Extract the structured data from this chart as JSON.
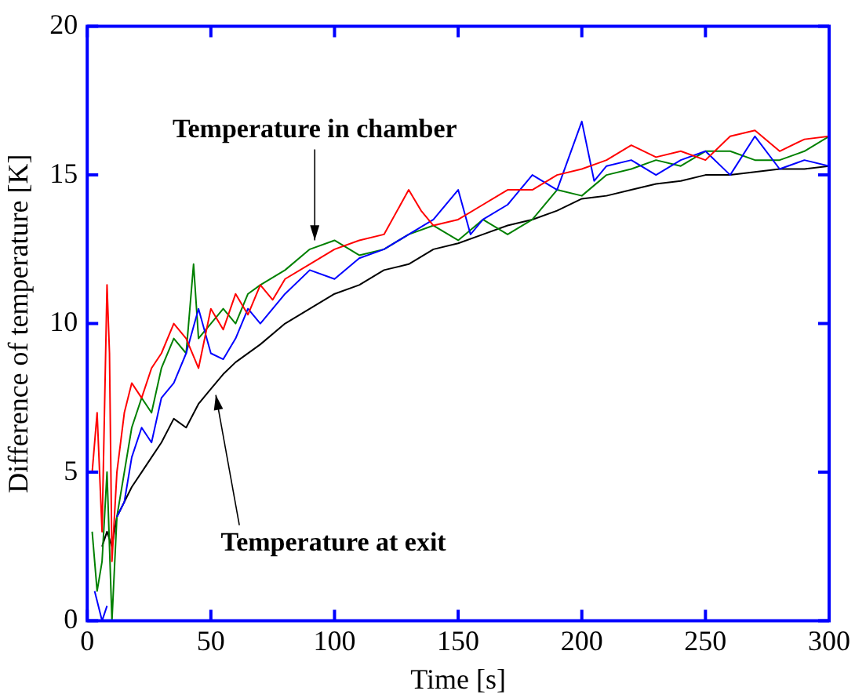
{
  "chart_data": {
    "type": "line",
    "xlabel": "Time [s]",
    "ylabel": "Difference of temperature [K]",
    "xlim": [
      0,
      300
    ],
    "xticks": [
      0,
      50,
      100,
      150,
      200,
      250,
      300
    ],
    "ylim": [
      0,
      20
    ],
    "yticks": [
      0,
      5,
      10,
      15,
      20
    ],
    "grid": false,
    "legend": false,
    "marker": "none",
    "line_style": "solid",
    "annotations": [
      {
        "text": "Temperature in chamber",
        "x": 92,
        "y": 12.8
      },
      {
        "text": "Temperature at exit",
        "x": 52,
        "y": 7.6
      }
    ],
    "series": [
      {
        "color": "#ff0000",
        "x": [
          2,
          4,
          6,
          8,
          9,
          10,
          12,
          15,
          18,
          22,
          26,
          30,
          35,
          40,
          45,
          50,
          55,
          60,
          65,
          70,
          75,
          80,
          90,
          100,
          110,
          120,
          130,
          135,
          140,
          150,
          160,
          170,
          180,
          190,
          200,
          210,
          220,
          230,
          240,
          250,
          260,
          270,
          280,
          290,
          300
        ],
        "values": [
          5,
          7,
          3,
          11.3,
          9,
          2,
          5,
          7,
          8,
          7.5,
          8.5,
          9,
          10,
          9.5,
          8.5,
          10.5,
          9.8,
          11,
          10.3,
          11.3,
          10.8,
          11.5,
          12,
          12.5,
          12.8,
          13,
          14.5,
          13.8,
          13.3,
          13.5,
          14,
          14.5,
          14.5,
          15,
          15.2,
          15.5,
          16,
          15.6,
          15.8,
          15.5,
          16.3,
          16.5,
          15.8,
          16.2,
          16.3
        ]
      },
      {
        "color": "#0000ff",
        "x": [
          3,
          6,
          8,
          10,
          12,
          15,
          18,
          22,
          26,
          30,
          35,
          40,
          45,
          50,
          55,
          60,
          65,
          70,
          75,
          80,
          90,
          100,
          110,
          120,
          130,
          140,
          150,
          155,
          160,
          170,
          180,
          190,
          200,
          205,
          210,
          220,
          230,
          240,
          250,
          260,
          270,
          280,
          290,
          300
        ],
        "values": [
          1,
          0,
          0.5,
          null,
          3.5,
          4,
          5.5,
          6.5,
          6,
          7.5,
          8,
          9,
          10.5,
          9,
          8.8,
          9.5,
          10.5,
          10,
          10.5,
          11,
          11.8,
          11.5,
          12.2,
          12.5,
          13,
          13.5,
          14.5,
          13,
          13.5,
          14,
          15,
          14.5,
          16.8,
          14.8,
          15.3,
          15.5,
          15,
          15.5,
          15.8,
          15,
          16.3,
          15.2,
          15.5,
          15.3
        ]
      },
      {
        "color": "#008000",
        "x": [
          2,
          4,
          6,
          8,
          10,
          12,
          15,
          18,
          22,
          26,
          30,
          35,
          40,
          43,
          45,
          50,
          55,
          60,
          65,
          70,
          80,
          90,
          100,
          110,
          120,
          130,
          140,
          150,
          160,
          170,
          180,
          190,
          200,
          210,
          220,
          230,
          240,
          250,
          260,
          270,
          280,
          290,
          300
        ],
        "values": [
          3,
          1,
          2,
          5,
          0,
          3.5,
          5,
          6.5,
          7.5,
          7,
          8.5,
          9.5,
          9,
          12,
          9.5,
          10,
          10.5,
          10,
          11,
          11.3,
          11.8,
          12.5,
          12.8,
          12.3,
          12.5,
          13,
          13.3,
          12.8,
          13.5,
          13,
          13.5,
          14.5,
          14.3,
          15,
          15.2,
          15.5,
          15.3,
          15.8,
          15.8,
          15.5,
          15.5,
          15.8,
          16.3
        ]
      },
      {
        "color": "#000000",
        "x": [
          6,
          8,
          10,
          12,
          15,
          18,
          22,
          26,
          30,
          35,
          40,
          45,
          50,
          55,
          60,
          70,
          80,
          90,
          100,
          110,
          120,
          130,
          140,
          150,
          160,
          170,
          180,
          190,
          200,
          210,
          220,
          230,
          240,
          250,
          260,
          270,
          280,
          290,
          300
        ],
        "values": [
          2.5,
          3,
          2.5,
          3.5,
          4,
          4.5,
          5,
          5.5,
          6,
          6.8,
          6.5,
          7.3,
          7.8,
          8.3,
          8.7,
          9.3,
          10,
          10.5,
          11,
          11.3,
          11.8,
          12,
          12.5,
          12.7,
          13,
          13.3,
          13.5,
          13.8,
          14.2,
          14.3,
          14.5,
          14.7,
          14.8,
          15,
          15,
          15.1,
          15.2,
          15.2,
          15.3
        ]
      }
    ]
  }
}
